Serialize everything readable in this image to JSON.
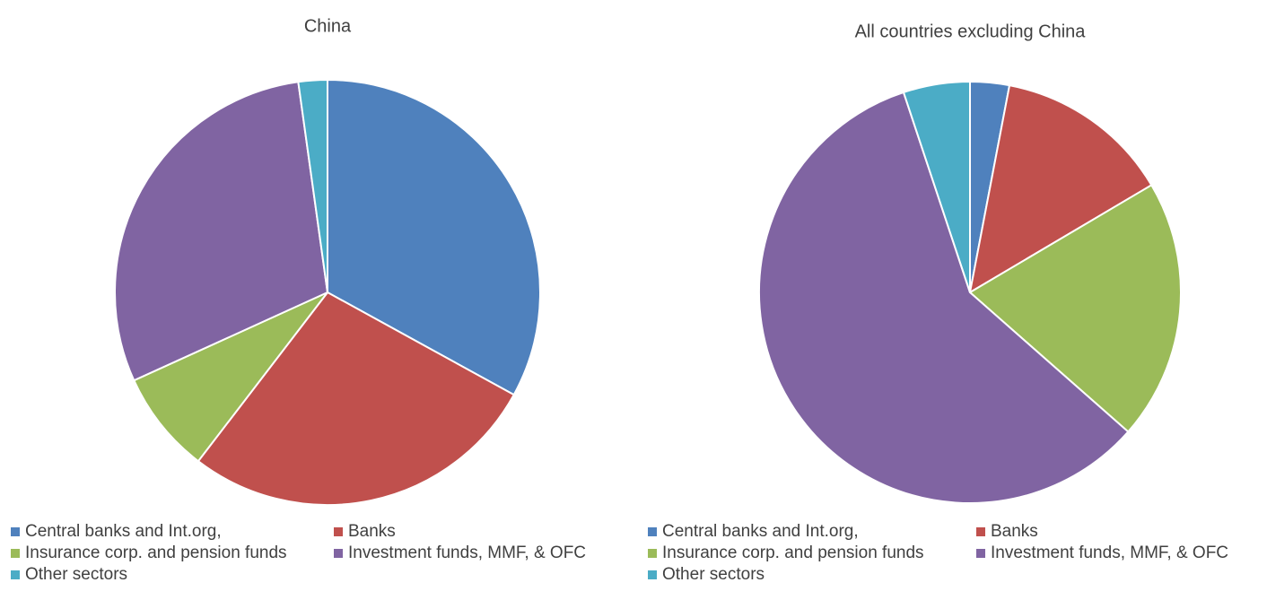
{
  "chart_data": [
    {
      "type": "pie",
      "title": "China",
      "categories": [
        "Central banks and Int.org,",
        "Banks",
        "Insurance corp. and pension funds",
        "Investment funds, MMF, & OFC",
        "Other sectors"
      ],
      "values": [
        33,
        27.4,
        7.8,
        29.6,
        2.2
      ],
      "colors": [
        "#4f81bd",
        "#c0504d",
        "#9bbb59",
        "#8064a2",
        "#4bacc6"
      ]
    },
    {
      "type": "pie",
      "title": "All countries excluding China",
      "categories": [
        "Central banks and Int.org,",
        "Banks",
        "Insurance corp. and pension funds",
        "Investment funds, MMF, & OFC",
        "Other sectors"
      ],
      "values": [
        3,
        13.5,
        20,
        58.4,
        5.1
      ],
      "colors": [
        "#4f81bd",
        "#c0504d",
        "#9bbb59",
        "#8064a2",
        "#4bacc6"
      ]
    }
  ]
}
